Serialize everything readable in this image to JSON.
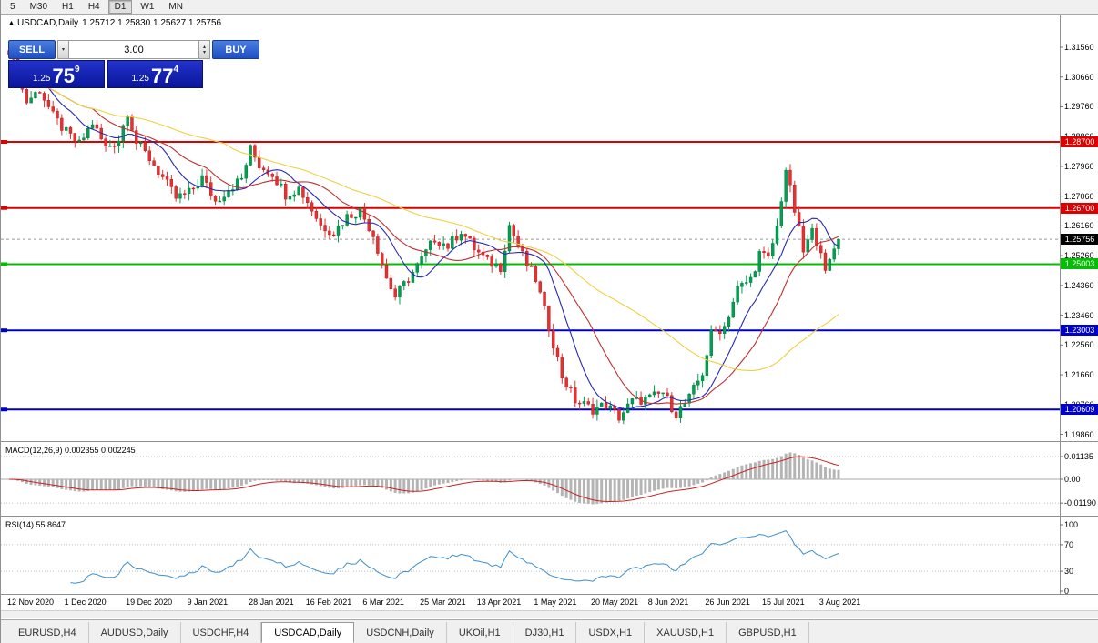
{
  "toolbar": {
    "timeframes": [
      "5",
      "M30",
      "H1",
      "H4",
      "D1",
      "W1",
      "MN"
    ],
    "active": "D1"
  },
  "chart_header": {
    "icon": "▲",
    "symbol_series": "USDCAD,Daily",
    "ohlc": "1.25712 1.25830 1.25627 1.25756"
  },
  "trade_panel": {
    "sell_label": "SELL",
    "buy_label": "BUY",
    "volume": "3.00",
    "bid": {
      "prefix": "1.25",
      "big": "75",
      "sup": "9"
    },
    "ask": {
      "prefix": "1.25",
      "big": "77",
      "sup": "4"
    }
  },
  "indicators": {
    "macd_label": "MACD(12,26,9) 0.002355 0.002245",
    "rsi_label": "RSI(14) 55.8647"
  },
  "price_axis": {
    "ticks": [
      "1.31560",
      "1.30660",
      "1.29760",
      "1.28860",
      "1.27960",
      "1.27060",
      "1.26160",
      "1.25260",
      "1.24360",
      "1.23460",
      "1.22560",
      "1.21660",
      "1.20760",
      "1.19860"
    ]
  },
  "macd_axis": [
    {
      "label": "0.01135",
      "value": 0.01135
    },
    {
      "label": "0.00",
      "value": 0
    },
    {
      "label": "-0.01190",
      "value": -0.0119
    }
  ],
  "rsi_axis": [
    {
      "label": "100",
      "value": 100
    },
    {
      "label": "70",
      "value": 70
    },
    {
      "label": "30",
      "value": 30
    },
    {
      "label": "0",
      "value": 0
    }
  ],
  "tabs": {
    "items": [
      "EURUSD,H4",
      "AUDUSD,Daily",
      "USDCHF,H4",
      "USDCAD,Daily",
      "USDCNH,Daily",
      "UKOil,H1",
      "DJ30,H1",
      "USDX,H1",
      "XAUUSD,H1",
      "GBPUSD,H1"
    ],
    "active": "USDCAD,Daily"
  },
  "chart_data": {
    "type": "candlestick",
    "symbol": "USDCAD",
    "timeframe": "Daily",
    "ohlc_current": {
      "open": 1.25712,
      "high": 1.2583,
      "low": 1.25627,
      "close": 1.25756
    },
    "y_range": [
      1.1986,
      1.3156
    ],
    "bars_total": 190,
    "last_close": 1.25756,
    "price_path_anchors": [
      [
        0,
        1.315
      ],
      [
        2,
        1.3062
      ],
      [
        4,
        1.2992
      ],
      [
        7,
        1.3028
      ],
      [
        10,
        1.2948
      ],
      [
        13,
        1.2898
      ],
      [
        16,
        1.2862
      ],
      [
        19,
        1.2928
      ],
      [
        22,
        1.2852
      ],
      [
        25,
        1.2878
      ],
      [
        27,
        1.2962
      ],
      [
        29,
        1.2868
      ],
      [
        32,
        1.282
      ],
      [
        35,
        1.2762
      ],
      [
        38,
        1.27
      ],
      [
        41,
        1.2716
      ],
      [
        44,
        1.2762
      ],
      [
        47,
        1.269
      ],
      [
        50,
        1.2728
      ],
      [
        53,
        1.2758
      ],
      [
        55,
        1.2848
      ],
      [
        57,
        1.28
      ],
      [
        60,
        1.2775
      ],
      [
        63,
        1.2712
      ],
      [
        66,
        1.273
      ],
      [
        68,
        1.269
      ],
      [
        71,
        1.2618
      ],
      [
        74,
        1.2598
      ],
      [
        77,
        1.2645
      ],
      [
        80,
        1.2662
      ],
      [
        83,
        1.259
      ],
      [
        86,
        1.2458
      ],
      [
        88,
        1.2402
      ],
      [
        90,
        1.2438
      ],
      [
        92,
        1.2475
      ],
      [
        94,
        1.2515
      ],
      [
        97,
        1.2578
      ],
      [
        100,
        1.2555
      ],
      [
        103,
        1.2602
      ],
      [
        106,
        1.2548
      ],
      [
        109,
        1.2508
      ],
      [
        112,
        1.2492
      ],
      [
        114,
        1.2618
      ],
      [
        116,
        1.2555
      ],
      [
        118,
        1.2498
      ],
      [
        120,
        1.2455
      ],
      [
        123,
        1.2312
      ],
      [
        126,
        1.2162
      ],
      [
        129,
        1.2088
      ],
      [
        133,
        1.2062
      ],
      [
        136,
        1.2075
      ],
      [
        139,
        1.2038
      ],
      [
        142,
        1.2085
      ],
      [
        146,
        1.2095
      ],
      [
        149,
        1.2112
      ],
      [
        152,
        1.2048
      ],
      [
        155,
        1.2095
      ],
      [
        158,
        1.2172
      ],
      [
        160,
        1.2288
      ],
      [
        163,
        1.2312
      ],
      [
        166,
        1.2425
      ],
      [
        169,
        1.2455
      ],
      [
        171,
        1.2532
      ],
      [
        173,
        1.2515
      ],
      [
        175,
        1.2612
      ],
      [
        177,
        1.2788
      ],
      [
        179,
        1.2662
      ],
      [
        181,
        1.2538
      ],
      [
        183,
        1.2598
      ],
      [
        185,
        1.2548
      ],
      [
        186,
        1.2468
      ],
      [
        188,
        1.2548
      ],
      [
        189,
        1.25756
      ]
    ],
    "x_axis_dates": [
      {
        "label": "12 Nov 2020",
        "bar": 0
      },
      {
        "label": "1 Dec 2020",
        "bar": 13
      },
      {
        "label": "19 Dec 2020",
        "bar": 27
      },
      {
        "label": "9 Jan 2021",
        "bar": 41
      },
      {
        "label": "28 Jan 2021",
        "bar": 55
      },
      {
        "label": "16 Feb 2021",
        "bar": 68
      },
      {
        "label": "6 Mar 2021",
        "bar": 81
      },
      {
        "label": "25 Mar 2021",
        "bar": 94
      },
      {
        "label": "13 Apr 2021",
        "bar": 107
      },
      {
        "label": "1 May 2021",
        "bar": 120
      },
      {
        "label": "20 May 2021",
        "bar": 133
      },
      {
        "label": "8 Jun 2021",
        "bar": 146
      },
      {
        "label": "26 Jun 2021",
        "bar": 159
      },
      {
        "label": "15 Jul 2021",
        "bar": 172
      },
      {
        "label": "3 Aug 2021",
        "bar": 185
      }
    ],
    "levels": [
      {
        "price": 1.287,
        "label": "1.28700",
        "color": "#dd0000"
      },
      {
        "price": 1.267,
        "label": "1.26700",
        "color": "#dd0000"
      },
      {
        "price": 1.25003,
        "label": "1.25003",
        "color": "#00c000"
      },
      {
        "price": 1.23003,
        "label": "1.23003",
        "color": "#0000cc"
      },
      {
        "price": 1.20609,
        "label": "1.20609",
        "color": "#0000cc"
      }
    ],
    "current_price": {
      "price": 1.25756,
      "label": "1.25756",
      "color": "#000000"
    },
    "moving_averages": [
      {
        "period": 10,
        "color": "#2828b4"
      },
      {
        "period": 20,
        "color": "#c03030"
      },
      {
        "period": 50,
        "color": "#f0d040"
      }
    ],
    "sub_indicators": [
      {
        "name": "MACD",
        "params": [
          12,
          26,
          9
        ],
        "main": 0.002355,
        "signal": 0.002245,
        "histogram_color": "#b4b4b4",
        "signal_color": "#cc2020"
      },
      {
        "name": "RSI",
        "params": [
          14
        ],
        "value": 55.8647,
        "color": "#3e8fd0",
        "levels": [
          70,
          30
        ]
      }
    ],
    "candle_up_color": "#00a050",
    "candle_down_color": "#e83030"
  }
}
